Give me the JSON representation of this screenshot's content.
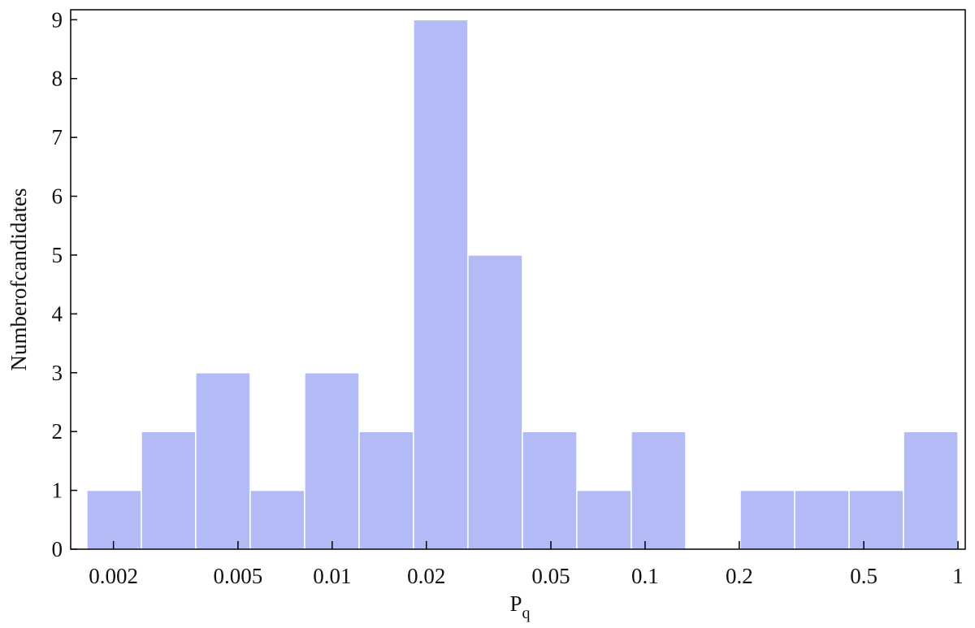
{
  "chart_data": {
    "type": "histogram",
    "xlabel": [
      "P",
      "q"
    ],
    "ylabel": "Numberofcandidates",
    "bins": [
      0.001644,
      0.002455,
      0.003664,
      0.00547,
      0.008166,
      0.01219,
      0.0182,
      0.02716,
      0.04055,
      0.06053,
      0.09036,
      0.1349,
      0.2014,
      0.3006,
      0.4487,
      0.6699,
      1
    ],
    "values": [
      1,
      2,
      3,
      1,
      3,
      2,
      9,
      5,
      2,
      1,
      2,
      0,
      1,
      1,
      1,
      2
    ],
    "color": "#b3bbf6",
    "xscale": "log",
    "xlim": [
      0.00146,
      1.055
    ],
    "ylim": [
      0,
      9.17
    ],
    "xticks": [
      0.002,
      0.005,
      0.01,
      0.02,
      0.05,
      0.1,
      0.2,
      0.5,
      1
    ],
    "yticks": [
      0,
      1,
      2,
      3,
      4,
      5,
      6,
      7,
      8,
      9
    ],
    "grid": false
  }
}
